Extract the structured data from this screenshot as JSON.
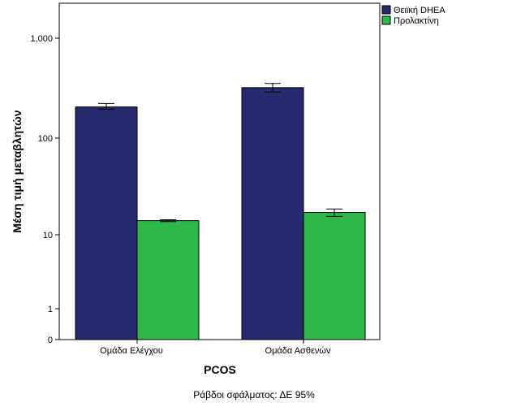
{
  "chart_data": {
    "type": "bar",
    "categories": [
      "Ομάδα Ελέγχου",
      "Ομάδα Ασθενών"
    ],
    "series": [
      {
        "name": "Θειϊκή DHEA",
        "color": "#262a6e",
        "values": [
          205,
          320
        ],
        "error_low": [
          195,
          290
        ],
        "error_high": [
          222,
          352
        ]
      },
      {
        "name": "Προλακτίνη",
        "color": "#2fb84a",
        "values": [
          14,
          17
        ],
        "error_low": [
          13.7,
          15.5
        ],
        "error_high": [
          14.3,
          18.5
        ]
      }
    ],
    "xlabel": "PCOS",
    "ylabel": "Μέση τιμή μεταβλητών",
    "y_scale": "log",
    "y_ticks": [
      "0",
      "1",
      "10",
      "100",
      "1,000"
    ],
    "note": "Ράβδοι σφάλματος: ΔΕ 95%",
    "legend_position": "top-right",
    "grid": false
  }
}
